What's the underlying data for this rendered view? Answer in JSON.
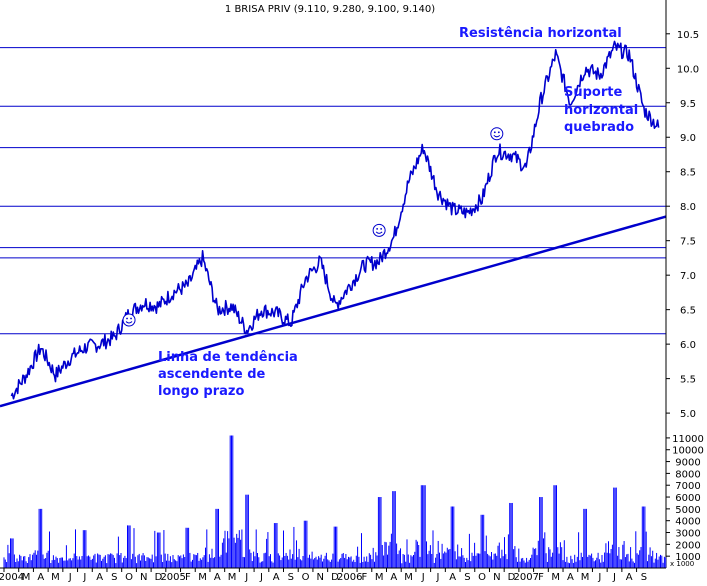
{
  "chart_data": [
    {
      "type": "line",
      "title": "1 BRISA PRIV (9.110, 9.280, 9.100, 9.140)",
      "xlabel": "",
      "ylabel": "",
      "ylim": [
        4.9,
        10.7
      ],
      "x_range": [
        "2004-01",
        "2007-09"
      ],
      "y_ticks": [
        "5.0",
        "5.5",
        "6.0",
        "6.5",
        "7.0",
        "7.5",
        "8.0",
        "8.5",
        "9.0",
        "9.5",
        "10.0",
        "10.5"
      ],
      "x_month_labels": [
        "2004",
        "M",
        "A",
        "M",
        "J",
        "J",
        "A",
        "S",
        "O",
        "N",
        "D",
        "2005",
        "F",
        "M",
        "A",
        "M",
        "J",
        "J",
        "A",
        "S",
        "O",
        "N",
        "D",
        "2006",
        "F",
        "M",
        "A",
        "M",
        "J",
        "J",
        "A",
        "S",
        "O",
        "N",
        "D",
        "2007",
        "F",
        "M",
        "A",
        "M",
        "J",
        "J",
        "A",
        "S"
      ],
      "grid": false,
      "series": [
        {
          "values_note": "",
          "points": [
            [
              "2004-01",
              5.25
            ],
            [
              "2004-02",
              5.55
            ],
            [
              "2004-03",
              5.95
            ],
            [
              "2004-04",
              5.55
            ],
            [
              "2004-05",
              5.8
            ],
            [
              "2004-06",
              5.95
            ],
            [
              "2004-07",
              6.0
            ],
            [
              "2004-08",
              6.1
            ],
            [
              "2004-09",
              6.45
            ],
            [
              "2004-10",
              6.6
            ],
            [
              "2004-11",
              6.55
            ],
            [
              "2004-12",
              6.75
            ],
            [
              "2005-01",
              6.85
            ],
            [
              "2005-02",
              7.25
            ],
            [
              "2005-03",
              6.5
            ],
            [
              "2005-04",
              6.55
            ],
            [
              "2005-05",
              6.2
            ],
            [
              "2005-06",
              6.5
            ],
            [
              "2005-07",
              6.45
            ],
            [
              "2005-08",
              6.3
            ],
            [
              "2005-09",
              6.95
            ],
            [
              "2005-10",
              7.2
            ],
            [
              "2005-11",
              6.55
            ],
            [
              "2005-12",
              6.85
            ],
            [
              "2006-01",
              7.15
            ],
            [
              "2006-02",
              7.2
            ],
            [
              "2006-03",
              7.55
            ],
            [
              "2006-04",
              8.35
            ],
            [
              "2006-05",
              8.85
            ],
            [
              "2006-06",
              8.2
            ],
            [
              "2006-07",
              7.95
            ],
            [
              "2006-08",
              7.9
            ],
            [
              "2006-09",
              8.1
            ],
            [
              "2006-10",
              8.8
            ],
            [
              "2006-11",
              8.75
            ],
            [
              "2006-12",
              8.55
            ],
            [
              "2007-01",
              9.55
            ],
            [
              "2007-02",
              10.2
            ],
            [
              "2007-03",
              9.5
            ],
            [
              "2007-04",
              10.0
            ],
            [
              "2007-05",
              9.9
            ],
            [
              "2007-06",
              10.3
            ],
            [
              "2007-07",
              10.2
            ],
            [
              "2007-08",
              9.4
            ],
            [
              "2007-09",
              9.14
            ]
          ]
        }
      ],
      "horizontal_levels": [
        10.3,
        9.45,
        8.85,
        8.0,
        7.4,
        7.25,
        6.15
      ],
      "trendline": {
        "from": [
          "2004-01",
          5.1
        ],
        "to": [
          "2007-09",
          7.85
        ]
      },
      "annotations": {
        "resistance": "Resistência horizontal",
        "support_line1": "Suporte",
        "support_line2": "horizontal",
        "support_line3": "quebrado",
        "trend_line1": "Linha de tendência",
        "trend_line2": "ascendente de",
        "trend_line3": "longo prazo"
      },
      "smileys": [
        [
          "2004-09",
          6.35
        ],
        [
          "2006-02",
          7.65
        ],
        [
          "2006-10",
          9.05
        ]
      ]
    },
    {
      "type": "bar",
      "title": "",
      "ylim": [
        0,
        11500
      ],
      "y_ticks": [
        "1000",
        "2000",
        "3000",
        "4000",
        "5000",
        "6000",
        "7000",
        "8000",
        "9000",
        "10000",
        "11000"
      ],
      "y_unit_label": "x 1000",
      "series_peaks": [
        [
          "2004-01",
          2500
        ],
        [
          "2004-03",
          5000
        ],
        [
          "2004-06",
          3200
        ],
        [
          "2004-09",
          3600
        ],
        [
          "2004-11",
          3000
        ],
        [
          "2005-01",
          3400
        ],
        [
          "2005-03",
          5000
        ],
        [
          "2005-04",
          11200
        ],
        [
          "2005-05",
          6200
        ],
        [
          "2005-07",
          3800
        ],
        [
          "2005-09",
          4000
        ],
        [
          "2005-11",
          3500
        ],
        [
          "2006-02",
          6000
        ],
        [
          "2006-03",
          6500
        ],
        [
          "2006-05",
          7000
        ],
        [
          "2006-07",
          5200
        ],
        [
          "2006-09",
          4500
        ],
        [
          "2006-11",
          5500
        ],
        [
          "2007-01",
          6000
        ],
        [
          "2007-02",
          7000
        ],
        [
          "2007-04",
          5000
        ],
        [
          "2007-06",
          6800
        ],
        [
          "2007-08",
          5200
        ]
      ]
    }
  ]
}
